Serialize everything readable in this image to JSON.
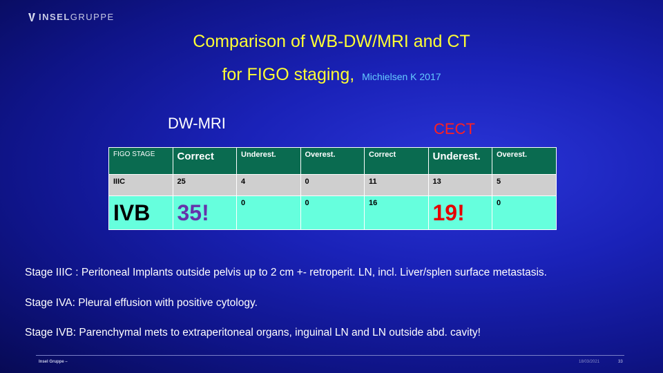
{
  "header": {
    "logo_text_bold": "INSEL",
    "logo_text_light": "GRUPPE"
  },
  "title": {
    "line1": "Comparison of WB-DW/MRI and CT",
    "line2": "for FIGO staging,",
    "citation": "Michielsen  K 2017"
  },
  "labels": {
    "mri": "DW-MRI",
    "ct": "CECT"
  },
  "table": {
    "headers": [
      "FIGO STAGE",
      "Correct",
      "Underest.",
      "Overest.",
      "Correct",
      "Underest.",
      "Overest."
    ],
    "rows": [
      [
        "IIIC",
        "25",
        "4",
        "0",
        "11",
        "13",
        "5"
      ],
      [
        "IVB",
        "35!",
        "0",
        "0",
        "16",
        "19!",
        "0"
      ]
    ]
  },
  "definitions": [
    "Stage IIIC    : Peritoneal Implants outside pelvis up to 2 cm +- retroperit. LN, incl. Liver/splen surface metastasis.",
    "Stage IVA:  Pleural effusion with positive cytology.",
    "Stage IVB:  Parenchymal mets to extraperitoneal organs, inguinal LN and LN outside abd. cavity!"
  ],
  "footer": {
    "left": "Insel Gruppe –",
    "date": "18/03/2021",
    "page": "33"
  },
  "colors": {
    "title": "#ffff33",
    "citation": "#66ccff",
    "ct_label": "#ff2020",
    "header_row": "#0a6b50",
    "highlight_row": "#66ffdd",
    "purple_value": "#6633aa",
    "red_value": "#e60000"
  }
}
